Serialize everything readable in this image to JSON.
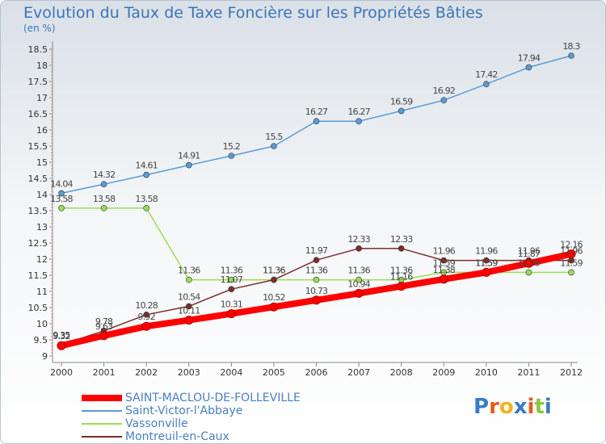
{
  "logo": {
    "text": "Proxiti"
  },
  "chart_data": {
    "type": "line",
    "title": "Evolution du Taux de Taxe Foncière sur les Propriétés Bâties",
    "subtitle": "(en %)",
    "categories": [
      "2000",
      "2001",
      "2002",
      "2003",
      "2004",
      "2005",
      "2006",
      "2007",
      "2008",
      "2009",
      "2010",
      "2011",
      "2012"
    ],
    "y_ticks": [
      "9",
      "9.5",
      "10",
      "10.5",
      "11",
      "11.5",
      "12",
      "12.5",
      "13",
      "13.5",
      "14",
      "14.5",
      "15",
      "15.5",
      "16",
      "16.5",
      "17",
      "17.5",
      "18",
      "18.5"
    ],
    "ylim": [
      9,
      18.5
    ],
    "grid": false,
    "legend_position": "bottom-left",
    "series": [
      {
        "name": "SAINT-MACLOU-DE-FOLLEVILLE",
        "color": "#ff0000",
        "values": [
          9.32,
          9.63,
          9.92,
          10.11,
          10.31,
          10.52,
          10.73,
          10.94,
          11.16,
          11.38,
          11.59,
          11.87,
          12.16
        ],
        "labels": [
          "9.32",
          "9.63",
          "9.92",
          "10.11",
          "10.31",
          "10.52",
          "10.73",
          "10.94",
          "11.16",
          "11.38",
          "11.59",
          "11.87",
          "12.16"
        ]
      },
      {
        "name": "Saint-Victor-l'Abbaye",
        "color": "#5b9bd5",
        "values": [
          14.04,
          14.32,
          14.61,
          14.91,
          15.2,
          15.5,
          16.27,
          16.27,
          16.59,
          16.92,
          17.42,
          17.94,
          18.3
        ],
        "labels": [
          "14.04",
          "14.32",
          "14.61",
          "14.91",
          "15.2",
          "15.5",
          "16.27",
          "16.27",
          "16.59",
          "16.92",
          "17.42",
          "17.94",
          "18.3"
        ]
      },
      {
        "name": "Vassonville",
        "color": "#99dd55",
        "values": [
          13.58,
          13.58,
          13.58,
          11.36,
          11.36,
          11.36,
          11.36,
          11.36,
          11.36,
          11.59,
          11.59,
          11.59,
          11.59
        ],
        "labels": [
          "13.58",
          "13.58",
          "13.58",
          "11.36",
          "11.36",
          "11.36",
          "11.36",
          "11.36",
          "11.36",
          "11.59",
          "11.59",
          "11.59",
          "11.59"
        ]
      },
      {
        "name": "Montreuil-en-Caux",
        "color": "#7a2e2e",
        "values": [
          9.35,
          9.78,
          10.28,
          10.54,
          11.07,
          11.36,
          11.97,
          12.33,
          12.33,
          11.96,
          11.96,
          11.96,
          11.96
        ],
        "labels": [
          "9.35",
          "9.78",
          "10.28",
          "10.54",
          "11.07",
          "11.36",
          "11.97",
          "12.33",
          "12.33",
          "11.96",
          "11.96",
          "11.96",
          "11.96"
        ]
      }
    ]
  }
}
